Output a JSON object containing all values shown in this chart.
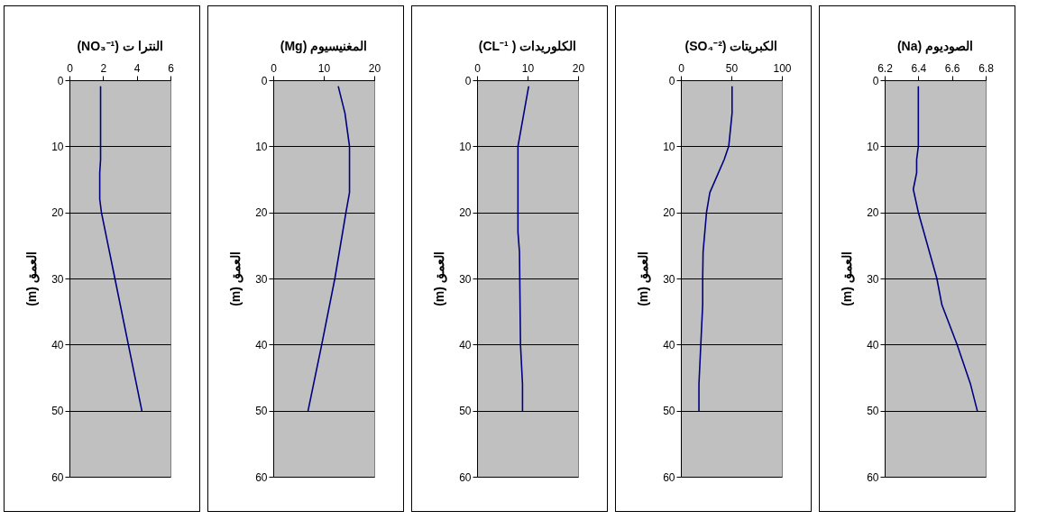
{
  "chart_data": [
    {
      "type": "line",
      "title": "(NO₃⁻¹) النترا ت",
      "ylabel": "(m) العمق",
      "xlim": [
        0,
        6
      ],
      "xticks": [
        0,
        2,
        4,
        6
      ],
      "ylim": [
        60,
        0
      ],
      "yticks": [
        0,
        10,
        20,
        30,
        40,
        50,
        60
      ],
      "grid": "y",
      "series": [
        {
          "color": "#000080",
          "x": [
            1.85,
            1.85,
            1.85,
            1.8,
            1.8,
            1.9,
            2.3,
            2.7,
            3.5,
            4.3
          ],
          "values": [
            1,
            10,
            12,
            14,
            18,
            20,
            25,
            30,
            40,
            50
          ]
        }
      ]
    },
    {
      "type": "line",
      "title": "(Mg) المغنيسيوم",
      "ylabel": "(m) العمق",
      "xlim": [
        0,
        20
      ],
      "xticks": [
        0,
        10,
        20
      ],
      "ylim": [
        60,
        0
      ],
      "yticks": [
        0,
        10,
        20,
        30,
        40,
        50,
        60
      ],
      "grid": "y",
      "series": [
        {
          "color": "#000080",
          "x": [
            12.9,
            14.2,
            15.1,
            15.1,
            14.4,
            12.2,
            9.6,
            6.9
          ],
          "values": [
            1,
            5,
            10,
            17,
            20,
            30,
            40,
            50
          ]
        }
      ]
    },
    {
      "type": "line",
      "title": "(CL⁻¹ ) الكلوريدات",
      "ylabel": "(m) العمق",
      "xlim": [
        0,
        20
      ],
      "xticks": [
        0,
        10,
        20
      ],
      "ylim": [
        60,
        0
      ],
      "yticks": [
        0,
        10,
        20,
        30,
        40,
        50,
        60
      ],
      "grid": "y",
      "series": [
        {
          "color": "#000080",
          "x": [
            10.2,
            8.1,
            8.1,
            8.4,
            8.6,
            9.0,
            9.0
          ],
          "values": [
            1,
            10,
            23,
            26,
            40,
            46,
            50
          ]
        }
      ]
    },
    {
      "type": "line",
      "title": "(SO₄⁻²) الكبريتات",
      "ylabel": "(m) العمق",
      "xlim": [
        0,
        100
      ],
      "xticks": [
        0,
        50,
        100
      ],
      "ylim": [
        60,
        0
      ],
      "yticks": [
        0,
        10,
        20,
        30,
        40,
        50,
        60
      ],
      "grid": "y",
      "series": [
        {
          "color": "#000080",
          "x": [
            50.7,
            50.7,
            47.4,
            42.9,
            28.7,
            25.4,
            22,
            21.6,
            21.6,
            17.9,
            17.9
          ],
          "values": [
            1,
            5,
            10,
            12,
            17,
            20,
            26,
            30,
            34,
            46,
            50
          ]
        }
      ]
    },
    {
      "type": "line",
      "title": "(Na) الصوديوم",
      "ylabel": "(m) العمق",
      "xlim": [
        6.2,
        6.8
      ],
      "xticks": [
        6.2,
        6.4,
        6.6,
        6.8
      ],
      "ylim": [
        60,
        0
      ],
      "yticks": [
        0,
        10,
        20,
        30,
        40,
        50,
        60
      ],
      "grid": "y",
      "series": [
        {
          "color": "#000080",
          "x": [
            6.4,
            6.4,
            6.39,
            6.39,
            6.37,
            6.4,
            6.51,
            6.54,
            6.63,
            6.71,
            6.75
          ],
          "values": [
            1,
            10,
            12,
            14,
            16.5,
            20,
            30,
            34,
            40,
            46,
            50
          ]
        }
      ]
    }
  ]
}
